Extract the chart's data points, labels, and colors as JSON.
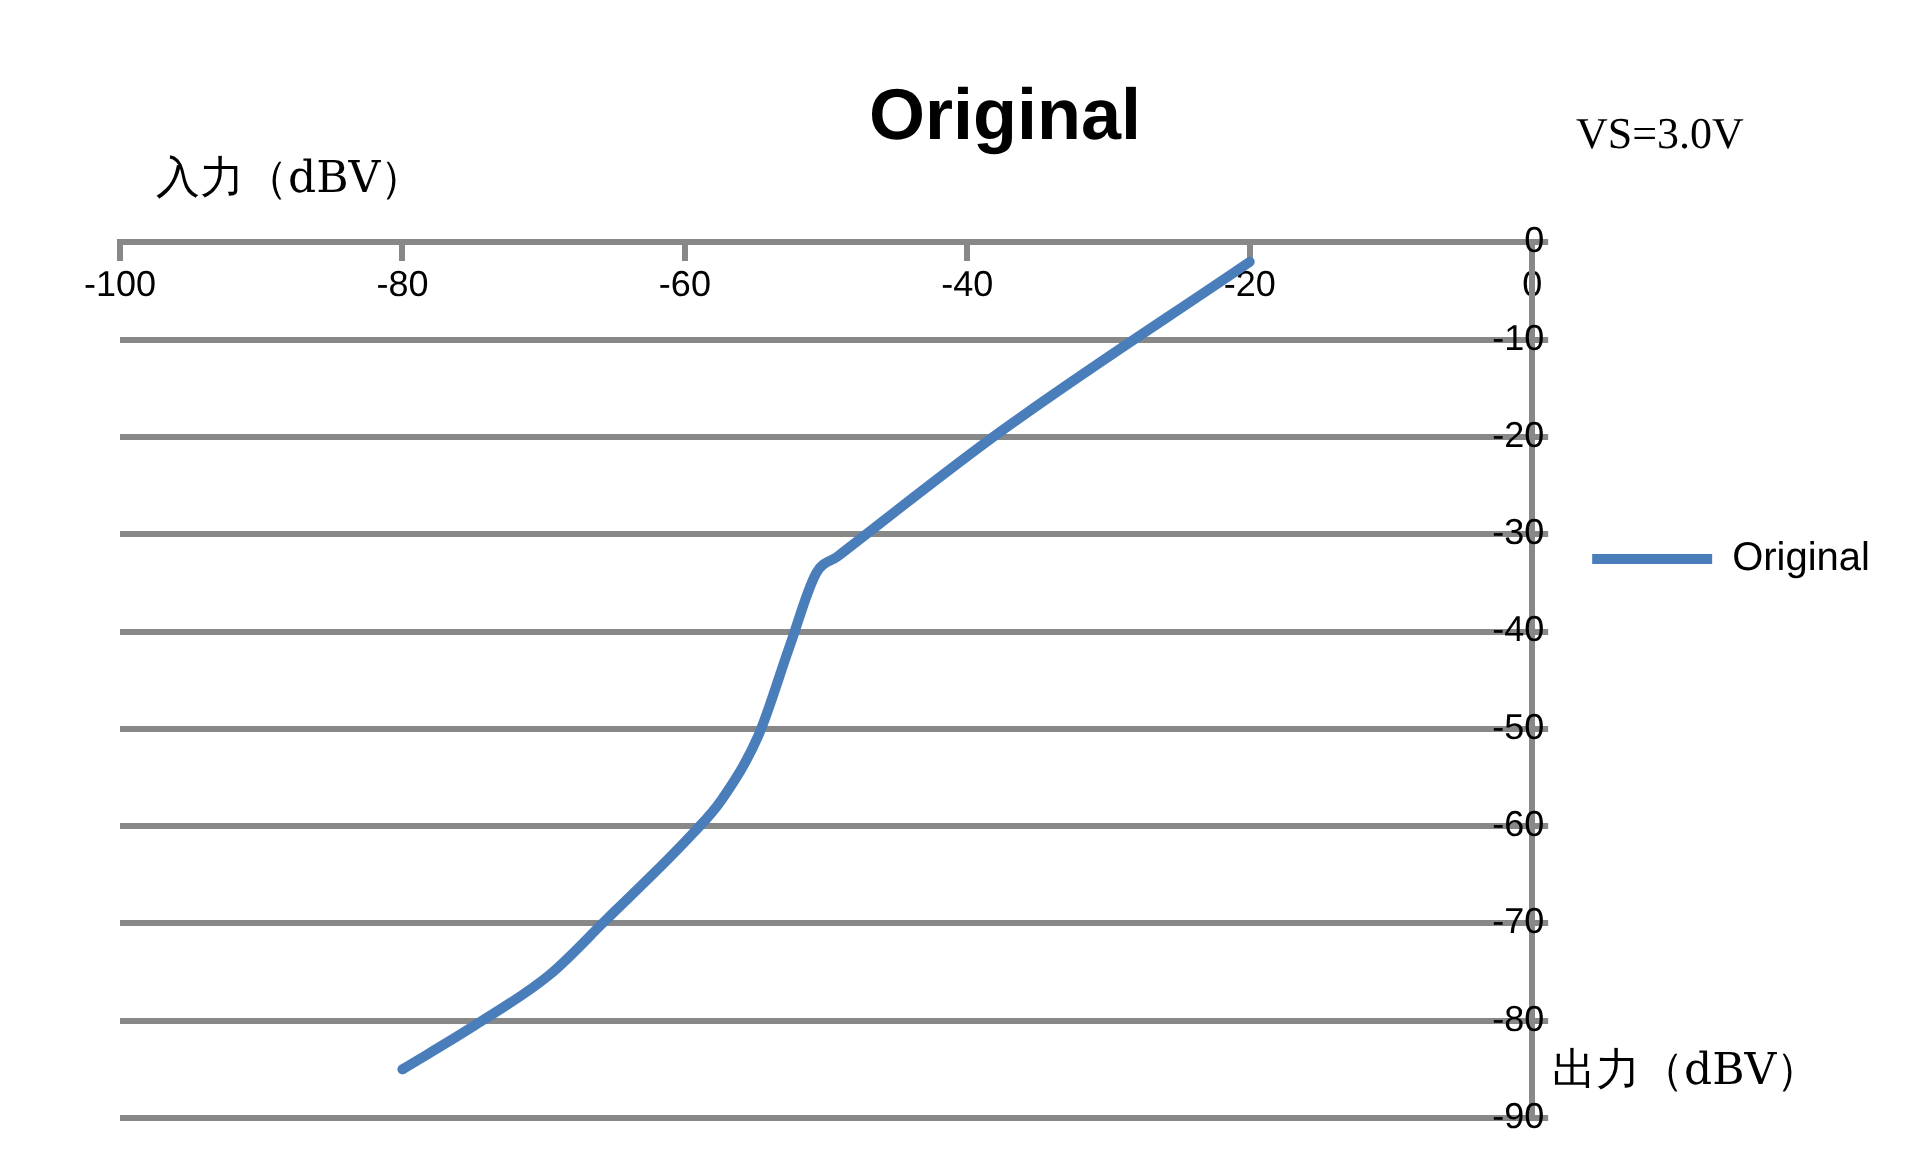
{
  "chart_data": {
    "type": "line",
    "title": "Original",
    "xlabel": "入力（dBV）",
    "ylabel": "出力（dBV）",
    "annotations": [
      "VS=3.0V"
    ],
    "xlim": [
      -100,
      0
    ],
    "xticks": [
      -100,
      -80,
      -60,
      -40,
      -20,
      0
    ],
    "ylim": [
      -90,
      0
    ],
    "yticks": [
      0,
      -10,
      -20,
      -30,
      -40,
      -50,
      -60,
      -70,
      -80,
      -90
    ],
    "grid": "y",
    "legend": "right",
    "marker": "none",
    "line_style": "solid",
    "series": [
      {
        "name": "Original",
        "color": "#4a7ebb",
        "x": [
          -80,
          -74.9,
          -69.6,
          -65.7,
          -59.4,
          -57.4,
          -54.8,
          -52.6,
          -50.7,
          -49.2,
          -37.6,
          -20
        ],
        "values": [
          -85,
          -80.5,
          -75.3,
          -69.8,
          -60.7,
          -57.3,
          -50.7,
          -41.6,
          -34,
          -32.3,
          -19.4,
          -2
        ]
      }
    ]
  }
}
